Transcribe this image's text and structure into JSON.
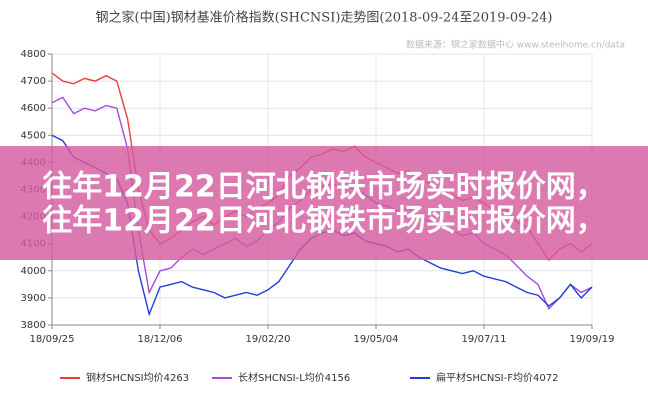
{
  "chart_data": {
    "type": "line",
    "title": "钢之家(中国)钢材基准价格指数(SHCNSI)走势图(2018-09-24至2019-09-24)",
    "source": "数据来源：钢之家数据中心 www.steelhome.cn/data",
    "categories": [
      "18/09/25",
      null,
      null,
      null,
      null,
      null,
      null,
      null,
      null,
      null,
      "18/12/06",
      null,
      null,
      null,
      null,
      null,
      null,
      null,
      null,
      null,
      "19/02/20",
      null,
      null,
      null,
      null,
      null,
      null,
      null,
      null,
      null,
      "19/05/04",
      null,
      null,
      null,
      null,
      null,
      null,
      null,
      null,
      null,
      "19/07/11",
      null,
      null,
      null,
      null,
      null,
      null,
      null,
      null,
      null,
      "19/09/19"
    ],
    "series": [
      {
        "name": "钢材SHCNSI均价4263",
        "color": "#e8413c",
        "values": [
          4730,
          4700,
          4690,
          4710,
          4700,
          4720,
          4700,
          4560,
          4300,
          4150,
          4100,
          4120,
          4150,
          4180,
          4200,
          4170,
          4200,
          4220,
          4200,
          4230,
          4250,
          4280,
          4350,
          4380,
          4420,
          4430,
          4450,
          4440,
          4460,
          4420,
          4400,
          4380,
          4360,
          4370,
          4340,
          4320,
          4300,
          4280,
          4260,
          4270,
          4250,
          4220,
          4230,
          4180,
          4160,
          4100,
          4040,
          4080,
          4100,
          4070,
          4100
        ]
      },
      {
        "name": "长材SHCNSI-L均价4156",
        "color": "#a54ad9",
        "values": [
          4620,
          4640,
          4580,
          4600,
          4590,
          4610,
          4600,
          4450,
          4150,
          3920,
          4000,
          4010,
          4050,
          4080,
          4060,
          4080,
          4100,
          4120,
          4090,
          4110,
          4150,
          4180,
          4230,
          4260,
          4300,
          4310,
          4320,
          4300,
          4310,
          4280,
          4250,
          4240,
          4220,
          4230,
          4200,
          4180,
          4160,
          4150,
          4130,
          4140,
          4100,
          4080,
          4060,
          4020,
          3980,
          3950,
          3860,
          3900,
          3950,
          3920,
          3940
        ]
      },
      {
        "name": "扁平材SHCNSI-F均价4072",
        "color": "#2040d8",
        "values": [
          4500,
          4480,
          4420,
          4400,
          4380,
          4360,
          4340,
          4250,
          4000,
          3840,
          3940,
          3950,
          3960,
          3940,
          3930,
          3920,
          3900,
          3910,
          3920,
          3910,
          3930,
          3960,
          4020,
          4080,
          4120,
          4140,
          4150,
          4130,
          4140,
          4110,
          4100,
          4090,
          4070,
          4080,
          4050,
          4030,
          4010,
          4000,
          3990,
          4000,
          3980,
          3970,
          3960,
          3940,
          3920,
          3910,
          3870,
          3900,
          3950,
          3900,
          3940
        ]
      }
    ],
    "ylim": [
      3800,
      4800
    ],
    "yticks": [
      3800,
      3900,
      4000,
      4100,
      4200,
      4300,
      4400,
      4500,
      4600,
      4700,
      4800
    ],
    "grid": true
  },
  "banner": {
    "lines": [
      "往年12月22日河北钢铁市场实时报价网，",
      "往年12月22日河北钢铁市场实时报价网，"
    ]
  }
}
